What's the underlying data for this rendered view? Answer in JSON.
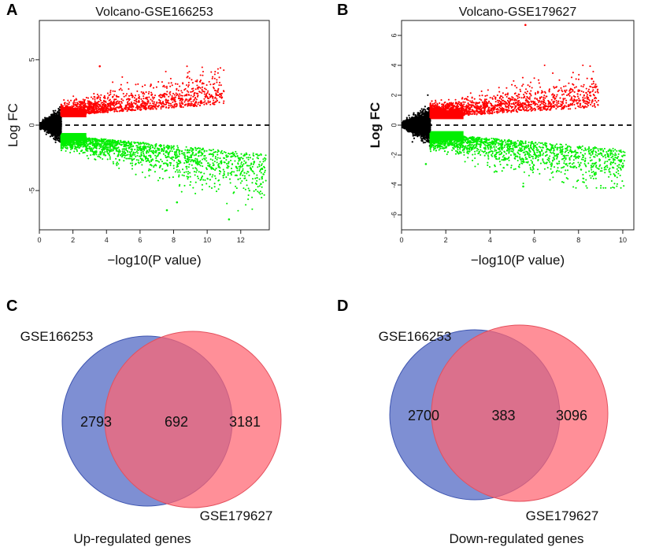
{
  "panels": {
    "a": "A",
    "b": "B",
    "c": "C",
    "d": "D"
  },
  "chart_data": [
    {
      "id": "A",
      "type": "scatter",
      "title": "Volcano-GSE166253",
      "xlabel": "−log10(P value)",
      "ylabel": "Log FC",
      "xlim": [
        0,
        13.7
      ],
      "ylim": [
        -8,
        8
      ],
      "xticks": [
        0,
        2,
        4,
        6,
        8,
        10,
        12
      ],
      "yticks": [
        -5,
        0,
        5
      ],
      "threshold_x": 1.3,
      "reference_line_y": 0,
      "series": [
        {
          "name": "up-regulated",
          "color": "#ff0000",
          "x_range": [
            1.3,
            11
          ],
          "y_range": [
            0.6,
            4.5
          ]
        },
        {
          "name": "down-regulated",
          "color": "#00ee00",
          "x_range": [
            1.3,
            13.5
          ],
          "y_range": [
            -7.3,
            -0.6
          ]
        },
        {
          "name": "not significant",
          "color": "#000000",
          "x_range": [
            0,
            1.3
          ],
          "y_range": [
            -1.3,
            1.3
          ]
        }
      ],
      "highlight_points": [
        {
          "x": 3.6,
          "y": 4.5
        },
        {
          "x": 9.5,
          "y": 2.9
        },
        {
          "x": 10.2,
          "y": 2.2
        },
        {
          "x": 11.3,
          "y": -7.2
        },
        {
          "x": 7.6,
          "y": -6.5
        },
        {
          "x": 13.2,
          "y": -4.5
        },
        {
          "x": 12.8,
          "y": -2.8
        },
        {
          "x": 8.2,
          "y": -5.9
        }
      ]
    },
    {
      "id": "B",
      "type": "scatter",
      "title": "Volcano-GSE179627",
      "xlabel": "−log10(P value)",
      "ylabel": "Log FC",
      "xlim": [
        0,
        10.5
      ],
      "ylim": [
        -7,
        7
      ],
      "xticks": [
        0,
        2,
        4,
        6,
        8,
        10
      ],
      "yticks": [
        -6,
        -4,
        -2,
        0,
        2,
        4,
        6
      ],
      "threshold_x": 1.3,
      "reference_line_y": 0,
      "series": [
        {
          "name": "up-regulated",
          "color": "#ff0000",
          "x_range": [
            1.3,
            8.9
          ],
          "y_range": [
            0.4,
            4.0
          ]
        },
        {
          "name": "down-regulated",
          "color": "#00ee00",
          "x_range": [
            1.3,
            10.1
          ],
          "y_range": [
            -4.2,
            -0.4
          ]
        },
        {
          "name": "not significant",
          "color": "#000000",
          "x_range": [
            0,
            1.3
          ],
          "y_range": [
            -2.7,
            1.1
          ]
        }
      ],
      "highlight_points": [
        {
          "x": 5.6,
          "y": 6.7
        },
        {
          "x": 8.6,
          "y": 3.1
        },
        {
          "x": 6.9,
          "y": 2.0
        },
        {
          "x": 10.0,
          "y": -2.8
        },
        {
          "x": 5.5,
          "y": -4.1
        },
        {
          "x": 1.1,
          "y": -2.6
        }
      ]
    },
    {
      "id": "C",
      "type": "venn",
      "title": "Up-regulated genes",
      "sets": [
        {
          "name": "GSE166253",
          "only": 2793,
          "color": "#5a70c6"
        },
        {
          "name": "GSE179627",
          "only": 3181,
          "color": "#ff6470"
        }
      ],
      "intersection": 692
    },
    {
      "id": "D",
      "type": "venn",
      "title": "Down-regulated genes",
      "sets": [
        {
          "name": "GSE166253",
          "only": 2700,
          "color": "#5a70c6"
        },
        {
          "name": "GSE179627",
          "only": 3096,
          "color": "#ff6470"
        }
      ],
      "intersection": 383
    }
  ]
}
